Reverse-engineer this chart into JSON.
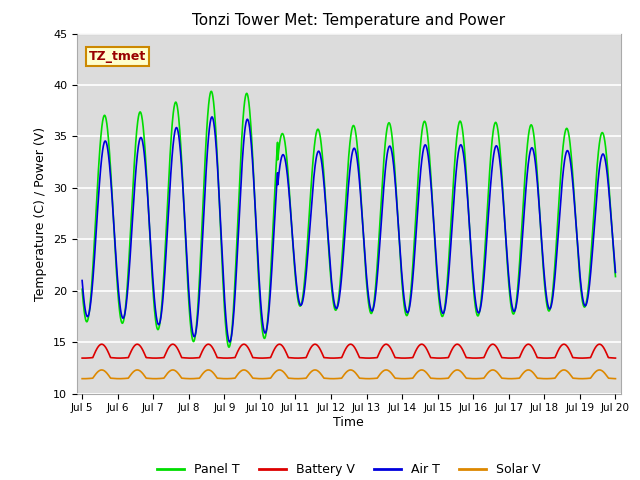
{
  "title": "Tonzi Tower Met: Temperature and Power",
  "xlabel": "Time",
  "ylabel": "Temperature (C) / Power (V)",
  "ylim": [
    10,
    45
  ],
  "xlim": [
    4.85,
    20.15
  ],
  "xtick_labels": [
    "Jul 5",
    "Jul 6",
    "Jul 7",
    "Jul 8",
    "Jul 9",
    "Jul 10",
    "Jul 11",
    "Jul 12",
    "Jul 13",
    "Jul 14",
    "Jul 15",
    "Jul 16",
    "Jul 17",
    "Jul 18",
    "Jul 19",
    "Jul 20"
  ],
  "xtick_positions": [
    5,
    6,
    7,
    8,
    9,
    10,
    11,
    12,
    13,
    14,
    15,
    16,
    17,
    18,
    19,
    20
  ],
  "ytick_positions": [
    10,
    15,
    20,
    25,
    30,
    35,
    40,
    45
  ],
  "colors": {
    "panel_t": "#00DD00",
    "battery_v": "#DD0000",
    "air_t": "#0000DD",
    "solar_v": "#DD8800"
  },
  "legend_labels": [
    "Panel T",
    "Battery V",
    "Air T",
    "Solar V"
  ],
  "annotation_text": "TZ_tmet",
  "annotation_color": "#990000",
  "annotation_bg": "#FFFFCC",
  "annotation_border": "#CC8800",
  "plot_bg": "#DCDCDC",
  "fig_bg": "#FFFFFF",
  "grid_color": "#FFFFFF",
  "linewidth": 1.2
}
